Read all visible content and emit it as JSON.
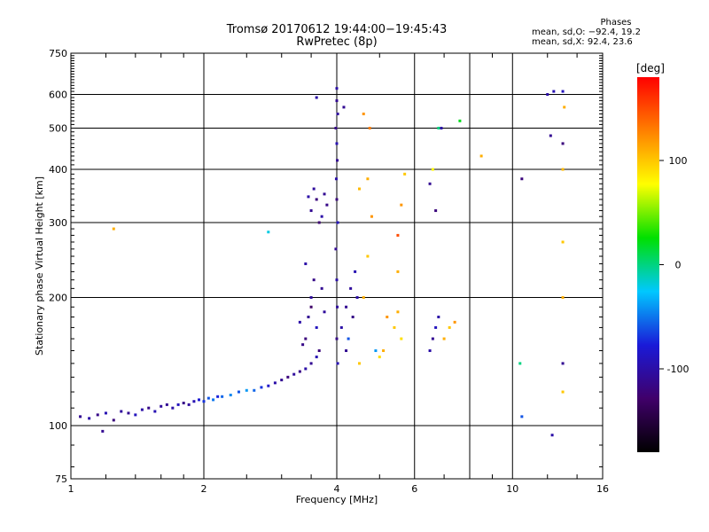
{
  "chart_data": {
    "type": "scatter",
    "title": "Tromsø 20170612 19:44:00−19:45:43",
    "subtitle": "RwPretec (8p)",
    "xlabel": "Frequency [MHz]",
    "ylabel": "Stationary phase Virtual Height [km]",
    "xscale": "log",
    "yscale": "log",
    "xlim": [
      1,
      16
    ],
    "ylim": [
      75,
      750
    ],
    "x_ticks": [
      1,
      2,
      4,
      6,
      10,
      16
    ],
    "x_grid": [
      2,
      4,
      6,
      8,
      10
    ],
    "y_ticks": [
      75,
      100,
      200,
      300,
      400,
      500,
      600,
      750
    ],
    "grid": true,
    "legend": {
      "title": "Phases",
      "lines": [
        "mean, sd,O: −92.4, 19.2",
        "mean, sd,X:  92.4, 23.6"
      ]
    },
    "colorbar": {
      "title": "[deg]",
      "ticks": [
        100,
        0,
        -100
      ],
      "range": [
        -180,
        180
      ],
      "colors": [
        "#000000",
        "#40006a",
        "#1a1ad8",
        "#00c8ff",
        "#00e000",
        "#ffff00",
        "#ff8000",
        "#ff0000"
      ]
    },
    "series": [
      {
        "points": [
          [
            1.05,
            105,
            -110
          ],
          [
            1.1,
            104,
            -100
          ],
          [
            1.15,
            106,
            -115
          ],
          [
            1.2,
            107,
            -95
          ],
          [
            1.25,
            103,
            -120
          ],
          [
            1.3,
            108,
            -105
          ],
          [
            1.35,
            107,
            -110
          ],
          [
            1.4,
            106,
            -90
          ],
          [
            1.45,
            109,
            -100
          ],
          [
            1.5,
            110,
            -115
          ],
          [
            1.55,
            108,
            -95
          ],
          [
            1.6,
            111,
            -105
          ],
          [
            1.65,
            112,
            -110
          ],
          [
            1.7,
            110,
            -100
          ],
          [
            1.75,
            112,
            -90
          ],
          [
            1.8,
            113,
            -115
          ],
          [
            1.85,
            112,
            -105
          ],
          [
            1.9,
            114,
            -95
          ],
          [
            1.95,
            115,
            -80
          ],
          [
            2.0,
            114,
            -70
          ],
          [
            2.05,
            116,
            -60
          ],
          [
            2.1,
            115,
            -50
          ],
          [
            2.15,
            117,
            -75
          ],
          [
            2.2,
            117,
            -55
          ],
          [
            2.3,
            118,
            -45
          ],
          [
            2.4,
            120,
            -60
          ],
          [
            2.5,
            121,
            -40
          ],
          [
            2.6,
            121,
            -55
          ],
          [
            2.7,
            123,
            -70
          ],
          [
            2.8,
            124,
            -85
          ],
          [
            2.9,
            126,
            -100
          ],
          [
            3.0,
            128,
            -110
          ],
          [
            3.1,
            130,
            -120
          ],
          [
            3.2,
            132,
            -105
          ],
          [
            3.3,
            134,
            -115
          ],
          [
            3.4,
            136,
            -100
          ],
          [
            3.5,
            140,
            -110
          ],
          [
            3.6,
            145,
            -95
          ],
          [
            3.4,
            160,
            -120
          ],
          [
            3.45,
            180,
            -110
          ],
          [
            3.5,
            200,
            -105
          ],
          [
            3.55,
            220,
            -115
          ],
          [
            3.4,
            240,
            -100
          ],
          [
            3.5,
            190,
            -130
          ],
          [
            3.6,
            170,
            -90
          ],
          [
            3.65,
            150,
            -120
          ],
          [
            3.7,
            210,
            -110
          ],
          [
            3.3,
            175,
            -100
          ],
          [
            3.35,
            155,
            -115
          ],
          [
            3.75,
            185,
            -105
          ],
          [
            3.5,
            320,
            -110
          ],
          [
            3.6,
            340,
            -120
          ],
          [
            3.7,
            310,
            -100
          ],
          [
            3.8,
            330,
            -115
          ],
          [
            3.55,
            360,
            -105
          ],
          [
            3.65,
            300,
            -125
          ],
          [
            3.75,
            350,
            -110
          ],
          [
            3.45,
            345,
            -100
          ],
          [
            4.0,
            620,
            -100
          ],
          [
            4.0,
            580,
            -110
          ],
          [
            4.02,
            540,
            -105
          ],
          [
            3.98,
            500,
            -115
          ],
          [
            4.0,
            460,
            -95
          ],
          [
            4.01,
            420,
            -110
          ],
          [
            3.99,
            380,
            -100
          ],
          [
            4.0,
            340,
            -120
          ],
          [
            4.02,
            300,
            -90
          ],
          [
            3.98,
            260,
            -110
          ],
          [
            4.0,
            220,
            -100
          ],
          [
            4.01,
            190,
            -105
          ],
          [
            4.0,
            160,
            -115
          ],
          [
            4.02,
            140,
            -95
          ],
          [
            4.1,
            170,
            -100
          ],
          [
            4.2,
            190,
            -110
          ],
          [
            4.3,
            210,
            -105
          ],
          [
            4.4,
            230,
            -95
          ],
          [
            4.2,
            150,
            -110
          ],
          [
            4.35,
            180,
            -115
          ],
          [
            4.45,
            200,
            -100
          ],
          [
            4.25,
            160,
            -60
          ],
          [
            4.5,
            140,
            100
          ],
          [
            4.6,
            200,
            110
          ],
          [
            4.7,
            250,
            100
          ],
          [
            4.8,
            310,
            120
          ],
          [
            4.5,
            360,
            105
          ],
          [
            4.7,
            380,
            110
          ],
          [
            4.6,
            540,
            120
          ],
          [
            4.75,
            500,
            130
          ],
          [
            4.9,
            150,
            -40
          ],
          [
            5.0,
            145,
            90
          ],
          [
            5.1,
            150,
            110
          ],
          [
            5.2,
            180,
            120
          ],
          [
            5.4,
            170,
            100
          ],
          [
            5.5,
            185,
            110
          ],
          [
            5.6,
            160,
            90
          ],
          [
            5.5,
            280,
            150
          ],
          [
            5.6,
            330,
            120
          ],
          [
            5.7,
            390,
            100
          ],
          [
            5.5,
            230,
            110
          ],
          [
            6.5,
            150,
            -100
          ],
          [
            6.6,
            160,
            -110
          ],
          [
            6.7,
            170,
            -90
          ],
          [
            6.8,
            180,
            -100
          ],
          [
            6.5,
            370,
            -110
          ],
          [
            6.6,
            400,
            80
          ],
          [
            6.7,
            320,
            -120
          ],
          [
            7.0,
            160,
            110
          ],
          [
            7.2,
            170,
            100
          ],
          [
            7.4,
            175,
            120
          ],
          [
            6.9,
            500,
            -100
          ],
          [
            7.6,
            520,
            20
          ],
          [
            8.5,
            430,
            110
          ],
          [
            10.5,
            380,
            -120
          ],
          [
            10.5,
            105,
            -60
          ],
          [
            10.4,
            140,
            0
          ],
          [
            12.0,
            600,
            -100
          ],
          [
            12.2,
            480,
            -110
          ],
          [
            12.4,
            610,
            -95
          ],
          [
            12.3,
            95,
            -100
          ],
          [
            13.0,
            610,
            -90
          ],
          [
            13.1,
            560,
            110
          ],
          [
            13.0,
            460,
            -120
          ],
          [
            13.0,
            400,
            105
          ],
          [
            13.0,
            270,
            100
          ],
          [
            13.0,
            200,
            110
          ],
          [
            13.0,
            140,
            -110
          ],
          [
            13.0,
            120,
            100
          ],
          [
            1.25,
            290,
            110
          ],
          [
            1.18,
            97,
            -110
          ],
          [
            2.8,
            285,
            -20
          ],
          [
            3.6,
            590,
            -100
          ],
          [
            4.15,
            560,
            -110
          ],
          [
            6.8,
            500,
            0
          ]
        ]
      }
    ]
  }
}
